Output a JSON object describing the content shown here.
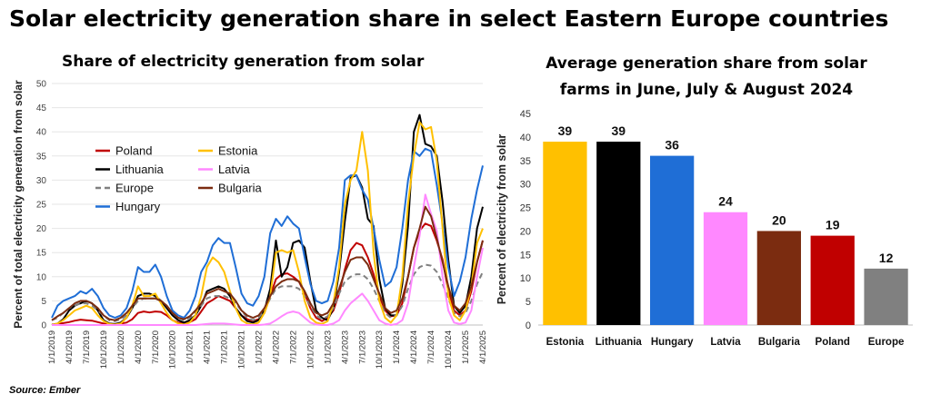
{
  "title": "Solar electricity generation share in select Eastern Europe countries",
  "source": "Source: Ember",
  "chart_data": [
    {
      "type": "line",
      "title": "Share of electricity generation from solar",
      "ylabel": "Percent of total electricity generation from solar",
      "ylim": [
        0,
        50
      ],
      "yticks": [
        0,
        5,
        10,
        15,
        20,
        25,
        30,
        35,
        40,
        45,
        50
      ],
      "x": [
        "1/1/2019",
        "2/1/2019",
        "3/1/2019",
        "4/1/2019",
        "5/1/2019",
        "6/1/2019",
        "7/1/2019",
        "8/1/2019",
        "9/1/2019",
        "10/1/2019",
        "11/1/2019",
        "12/1/2019",
        "1/1/2020",
        "2/1/2020",
        "3/1/2020",
        "4/1/2020",
        "5/1/2020",
        "6/1/2020",
        "7/1/2020",
        "8/1/2020",
        "9/1/2020",
        "10/1/2020",
        "11/1/2020",
        "12/1/2020",
        "1/1/2021",
        "2/1/2021",
        "3/1/2021",
        "4/1/2021",
        "5/1/2021",
        "6/1/2021",
        "7/1/2021",
        "8/1/2021",
        "9/1/2021",
        "10/1/2021",
        "11/1/2021",
        "12/1/2021",
        "1/1/2022",
        "2/1/2022",
        "3/1/2022",
        "4/1/2022",
        "5/1/2022",
        "6/1/2022",
        "7/1/2022",
        "8/1/2022",
        "9/1/2022",
        "10/1/2022",
        "11/1/2022",
        "12/1/2022",
        "1/1/2023",
        "2/1/2023",
        "3/1/2023",
        "4/1/2023",
        "5/1/2023",
        "6/1/2023",
        "7/1/2023",
        "8/1/2023",
        "9/1/2023",
        "10/1/2023",
        "11/1/2023",
        "12/1/2023",
        "1/1/2024",
        "2/1/2024",
        "3/1/2024",
        "4/1/2024",
        "5/1/2024",
        "6/1/2024",
        "7/1/2024",
        "8/1/2024",
        "9/1/2024",
        "10/1/2024",
        "11/1/2024",
        "12/1/2024",
        "1/1/2025",
        "2/1/2025",
        "3/1/2025",
        "4/1/2025"
      ],
      "xticks": [
        "1/1/2019",
        "4/1/2019",
        "7/1/2019",
        "10/1/2019",
        "1/1/2020",
        "4/1/2020",
        "7/1/2020",
        "10/1/2020",
        "1/1/2021",
        "4/1/2021",
        "7/1/2021",
        "10/1/2021",
        "1/1/2022",
        "4/1/2022",
        "7/1/2022",
        "10/1/2022",
        "1/1/2023",
        "4/1/2023",
        "7/1/2023",
        "10/1/2023",
        "1/1/2024",
        "4/1/2024",
        "7/1/2024",
        "10/1/2024",
        "1/1/2025",
        "4/1/2025"
      ],
      "legend_position": "left",
      "series": [
        {
          "name": "Poland",
          "color": "#c00000",
          "dash": false,
          "values": [
            0.1,
            0.2,
            0.4,
            0.6,
            0.9,
            1.1,
            1.0,
            0.9,
            0.6,
            0.3,
            0.1,
            0.1,
            0.3,
            0.5,
            1.2,
            2.5,
            2.8,
            2.6,
            2.8,
            2.7,
            2.0,
            1.0,
            0.5,
            0.3,
            0.6,
            1.2,
            2.8,
            4.5,
            5.2,
            6.0,
            5.5,
            5.0,
            3.5,
            2.0,
            1.2,
            0.8,
            1.2,
            2.5,
            6.0,
            9.5,
            10.5,
            10.7,
            10.0,
            9.0,
            6.5,
            3.5,
            1.5,
            0.8,
            1.5,
            3.0,
            6.5,
            11.5,
            15.5,
            17.0,
            16.5,
            14.0,
            10.5,
            6.0,
            3.0,
            1.8,
            2.0,
            4.5,
            10.0,
            16.0,
            19.5,
            21.0,
            20.5,
            17.5,
            13.5,
            7.0,
            3.0,
            2.0,
            3.0,
            7.0,
            13.0,
            17.5
          ]
        },
        {
          "name": "Lithuania",
          "color": "#000000",
          "dash": false,
          "values": [
            0.0,
            0.3,
            1.2,
            3.0,
            4.0,
            4.5,
            5.0,
            4.5,
            3.0,
            1.0,
            0.3,
            0.2,
            0.5,
            1.5,
            3.5,
            6.0,
            6.5,
            6.5,
            6.0,
            5.0,
            3.5,
            2.0,
            1.0,
            0.5,
            1.0,
            2.0,
            4.0,
            7.0,
            7.5,
            8.0,
            7.5,
            6.0,
            3.5,
            2.0,
            0.8,
            0.5,
            1.0,
            3.0,
            7.5,
            17.5,
            10.0,
            12.0,
            17.0,
            17.5,
            16.0,
            9.0,
            3.0,
            1.5,
            1.0,
            3.5,
            11.0,
            21.5,
            30.5,
            31.0,
            28.5,
            22.0,
            20.5,
            9.5,
            3.5,
            2.0,
            2.0,
            8.5,
            20.5,
            40.0,
            43.5,
            37.5,
            37.0,
            35.0,
            25.5,
            13.5,
            4.0,
            2.5,
            4.0,
            10.0,
            20.0,
            24.5
          ]
        },
        {
          "name": "Europe",
          "color": "#808080",
          "dash": true,
          "values": [
            1.0,
            1.5,
            2.5,
            3.5,
            4.0,
            4.5,
            4.5,
            4.0,
            3.0,
            2.0,
            1.0,
            0.8,
            1.2,
            2.0,
            3.5,
            5.0,
            5.5,
            5.5,
            5.5,
            5.0,
            4.0,
            2.5,
            1.5,
            1.0,
            1.5,
            2.5,
            4.0,
            5.5,
            6.0,
            6.0,
            6.0,
            5.5,
            4.5,
            3.0,
            1.5,
            1.0,
            1.5,
            3.0,
            5.5,
            7.5,
            8.0,
            8.0,
            8.0,
            7.5,
            6.0,
            4.0,
            2.0,
            1.2,
            1.8,
            3.5,
            6.5,
            9.0,
            10.0,
            10.5,
            10.5,
            9.5,
            7.5,
            5.0,
            2.5,
            1.5,
            2.0,
            4.0,
            7.5,
            10.5,
            12.0,
            12.5,
            12.3,
            11.0,
            8.5,
            5.5,
            2.5,
            1.8,
            2.5,
            5.0,
            8.5,
            11.0
          ]
        },
        {
          "name": "Hungary",
          "color": "#1f6ed6",
          "dash": false,
          "values": [
            1.5,
            4.0,
            5.0,
            5.5,
            6.0,
            7.0,
            6.5,
            7.5,
            6.0,
            3.5,
            2.0,
            1.5,
            2.0,
            3.5,
            7.0,
            12.0,
            11.0,
            11.0,
            12.5,
            10.0,
            6.0,
            3.0,
            2.0,
            1.5,
            3.0,
            6.0,
            11.0,
            13.0,
            16.5,
            18.0,
            17.0,
            17.0,
            12.0,
            6.5,
            4.5,
            4.0,
            6.0,
            10.0,
            19.0,
            22.0,
            20.5,
            22.5,
            21.0,
            20.0,
            14.0,
            8.5,
            5.0,
            4.5,
            5.0,
            9.0,
            16.0,
            30.0,
            31.0,
            31.0,
            28.0,
            26.0,
            20.0,
            13.5,
            8.0,
            9.0,
            12.0,
            20.0,
            30.0,
            36.0,
            35.0,
            36.5,
            36.0,
            29.0,
            21.0,
            12.0,
            6.0,
            9.0,
            14.0,
            22.0,
            28.0,
            33.0
          ]
        },
        {
          "name": "Estonia",
          "color": "#ffc000",
          "dash": false,
          "values": [
            0.0,
            0.3,
            1.0,
            2.0,
            3.0,
            3.5,
            4.0,
            3.5,
            2.0,
            0.8,
            0.2,
            0.1,
            0.3,
            1.5,
            4.0,
            8.0,
            6.0,
            6.0,
            6.5,
            4.5,
            2.5,
            1.0,
            0.3,
            0.1,
            0.5,
            2.0,
            6.0,
            12.0,
            14.0,
            13.0,
            11.0,
            7.0,
            3.5,
            1.0,
            0.3,
            0.1,
            0.5,
            2.5,
            6.0,
            15.0,
            15.5,
            15.0,
            15.5,
            11.0,
            5.0,
            1.5,
            0.5,
            0.2,
            0.8,
            4.5,
            12.0,
            25.0,
            30.0,
            32.0,
            40.0,
            32.0,
            15.0,
            5.0,
            1.5,
            0.5,
            2.0,
            10.0,
            25.0,
            35.0,
            42.0,
            40.5,
            41.0,
            34.0,
            20.0,
            6.0,
            2.0,
            1.0,
            3.0,
            8.0,
            17.0,
            20.0
          ]
        },
        {
          "name": "Latvia",
          "color": "#ff88ff",
          "dash": false,
          "values": [
            0.0,
            0.0,
            0.0,
            0.0,
            0.0,
            0.0,
            0.0,
            0.0,
            0.0,
            0.0,
            0.0,
            0.0,
            0.0,
            0.0,
            0.0,
            0.0,
            0.0,
            0.0,
            0.0,
            0.0,
            0.0,
            0.0,
            0.0,
            0.0,
            0.0,
            0.0,
            0.1,
            0.2,
            0.3,
            0.3,
            0.3,
            0.2,
            0.1,
            0.0,
            0.0,
            0.0,
            0.0,
            0.1,
            0.3,
            1.0,
            1.8,
            2.5,
            2.8,
            2.5,
            1.5,
            0.5,
            0.1,
            0.0,
            0.0,
            0.3,
            1.0,
            3.0,
            4.5,
            5.5,
            6.5,
            5.0,
            3.0,
            1.0,
            0.3,
            0.0,
            0.2,
            1.0,
            4.5,
            12.0,
            18.5,
            27.0,
            23.0,
            19.5,
            10.0,
            3.0,
            0.5,
            0.2,
            0.5,
            3.0,
            10.0,
            16.0
          ]
        },
        {
          "name": "Bulgaria",
          "color": "#7b2c10",
          "dash": false,
          "values": [
            1.0,
            1.8,
            2.5,
            3.5,
            4.5,
            5.0,
            5.0,
            4.5,
            3.5,
            2.0,
            1.2,
            1.0,
            1.5,
            2.5,
            4.0,
            5.5,
            5.5,
            5.5,
            5.5,
            5.0,
            4.0,
            2.5,
            1.5,
            1.2,
            1.8,
            3.0,
            4.5,
            6.5,
            7.0,
            7.5,
            7.0,
            6.5,
            5.0,
            3.0,
            2.0,
            1.5,
            2.0,
            3.5,
            6.0,
            8.0,
            9.0,
            9.5,
            9.5,
            9.0,
            7.0,
            4.5,
            2.5,
            2.0,
            2.5,
            4.5,
            7.5,
            11.0,
            13.5,
            14.0,
            14.0,
            12.5,
            9.5,
            6.5,
            3.5,
            2.5,
            3.0,
            5.5,
            10.0,
            16.0,
            20.0,
            24.5,
            22.5,
            18.0,
            13.0,
            8.0,
            4.0,
            3.0,
            4.5,
            8.0,
            13.0,
            17.5
          ]
        }
      ]
    },
    {
      "type": "bar",
      "title": "Average generation share from solar farms in June, July & August 2024",
      "ylabel": "Percent of electricity from solar",
      "ylim": [
        0,
        45
      ],
      "yticks": [
        0,
        5,
        10,
        15,
        20,
        25,
        30,
        35,
        40,
        45
      ],
      "categories": [
        "Estonia",
        "Lithuania",
        "Hungary",
        "Latvia",
        "Bulgaria",
        "Poland",
        "Europe"
      ],
      "values": [
        39,
        39,
        36,
        24,
        20,
        19,
        12
      ],
      "value_labels": [
        "39",
        "39",
        "36",
        "24",
        "20",
        "19",
        "12"
      ],
      "colors": [
        "#ffc000",
        "#000000",
        "#1f6ed6",
        "#ff88ff",
        "#7b2c10",
        "#c00000",
        "#808080"
      ]
    }
  ]
}
